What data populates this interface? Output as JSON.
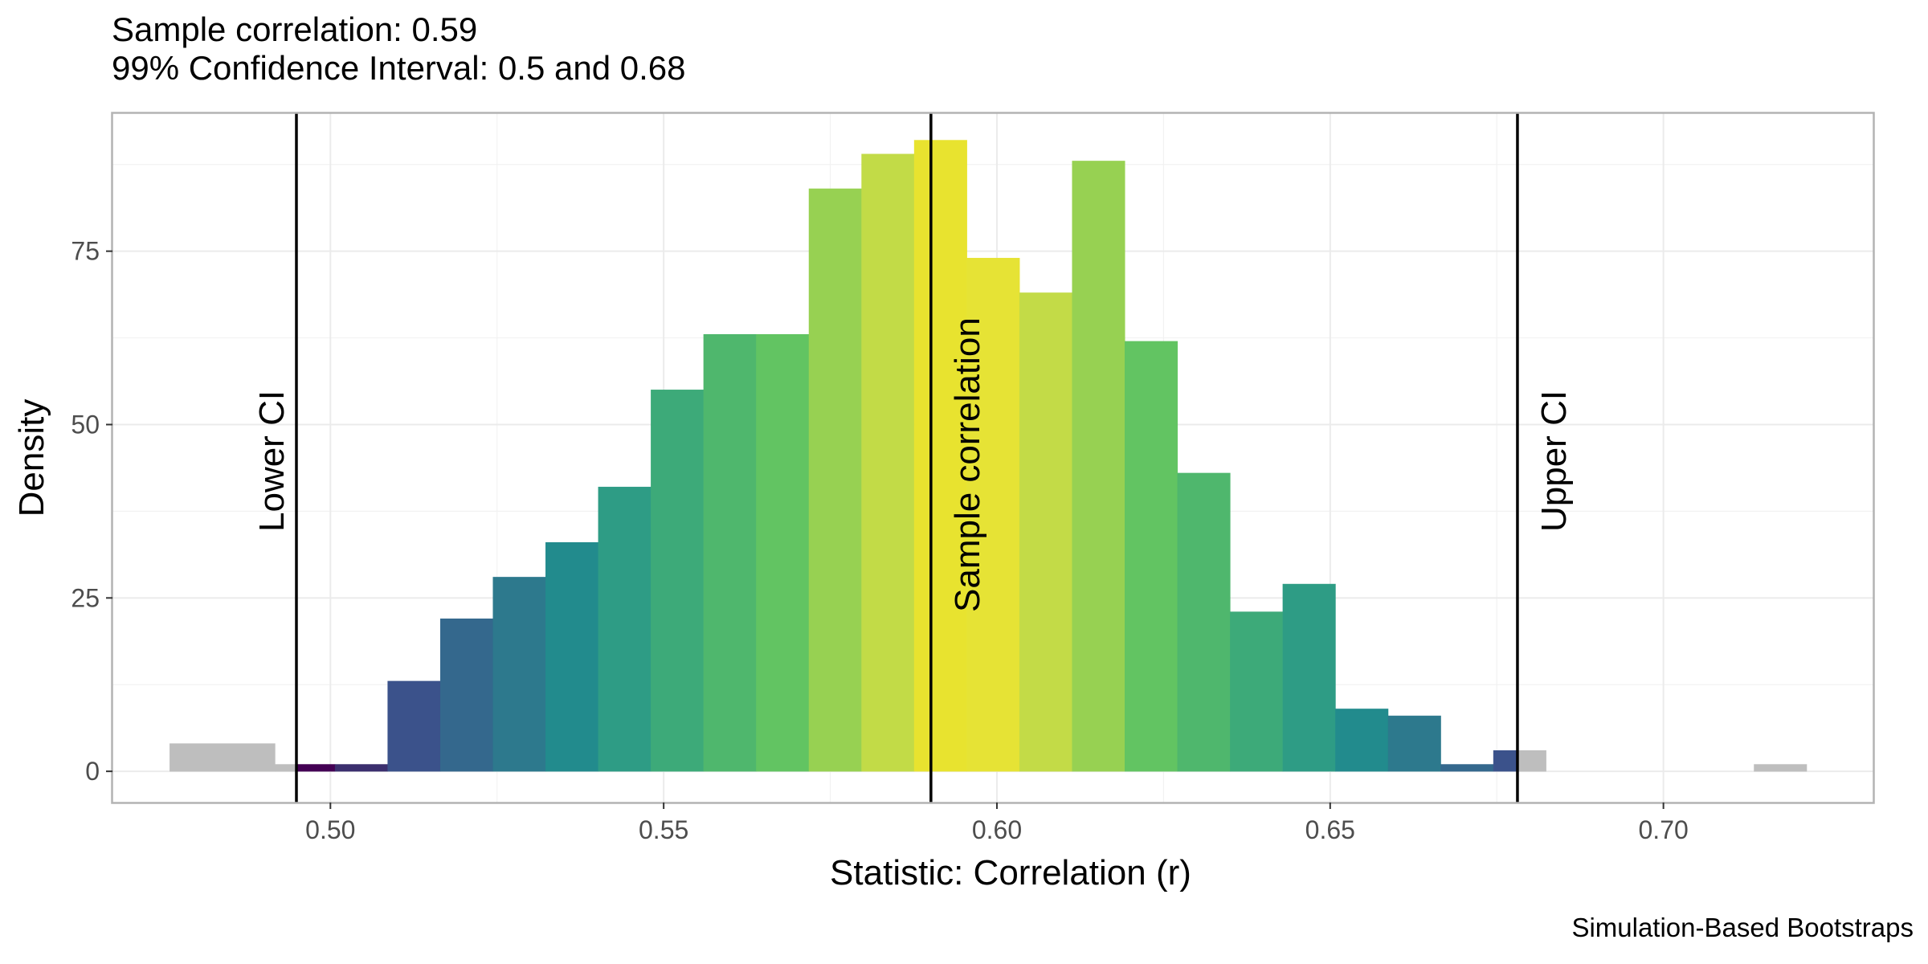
{
  "subtitle_line1": "Sample correlation: 0.59",
  "subtitle_line2": "99% Confidence Interval: 0.5 and 0.68",
  "caption": "Simulation-Based Bootstraps",
  "chart_data": {
    "type": "bar",
    "subtype": "histogram",
    "xlabel": "Statistic: Correlation (r)",
    "ylabel": "Density",
    "xlim": [
      0.4673,
      0.7315
    ],
    "ylim": [
      -4.5,
      95
    ],
    "x_ticks": [
      "0.50",
      "0.55",
      "0.60",
      "0.65",
      "0.70"
    ],
    "x_tick_values": [
      0.5,
      0.55,
      0.6,
      0.65,
      0.7
    ],
    "y_ticks": [
      "0",
      "25",
      "50",
      "75"
    ],
    "y_tick_values": [
      0,
      25,
      50,
      75
    ],
    "grid": true,
    "outside_ci_color": "#BEBEBE",
    "bins": [
      {
        "x0": 0.4759,
        "x1": 0.4917,
        "y": 4,
        "color": "#BEBEBE"
      },
      {
        "x0": 0.4917,
        "x1": 0.4949,
        "y": 1,
        "color": "#BEBEBE"
      },
      {
        "x0": 0.4949,
        "x1": 0.5007,
        "y": 1,
        "color": "#440154"
      },
      {
        "x0": 0.5007,
        "x1": 0.5086,
        "y": 1,
        "color": "#3B2F6E"
      },
      {
        "x0": 0.5086,
        "x1": 0.5165,
        "y": 13,
        "color": "#3B528B"
      },
      {
        "x0": 0.5165,
        "x1": 0.5244,
        "y": 22,
        "color": "#34688D"
      },
      {
        "x0": 0.5244,
        "x1": 0.5323,
        "y": 28,
        "color": "#2D798D"
      },
      {
        "x0": 0.5323,
        "x1": 0.5402,
        "y": 33,
        "color": "#228B8D"
      },
      {
        "x0": 0.5402,
        "x1": 0.5481,
        "y": 41,
        "color": "#2E9C85"
      },
      {
        "x0": 0.5481,
        "x1": 0.556,
        "y": 55,
        "color": "#3DAA79"
      },
      {
        "x0": 0.556,
        "x1": 0.5639,
        "y": 63,
        "color": "#4FB76D"
      },
      {
        "x0": 0.5639,
        "x1": 0.5718,
        "y": 63,
        "color": "#62C462"
      },
      {
        "x0": 0.5718,
        "x1": 0.5797,
        "y": 84,
        "color": "#97D152"
      },
      {
        "x0": 0.5797,
        "x1": 0.5876,
        "y": 89,
        "color": "#C2DB47"
      },
      {
        "x0": 0.5876,
        "x1": 0.5955,
        "y": 91,
        "color": "#E8E32F"
      },
      {
        "x0": 0.5955,
        "x1": 0.6034,
        "y": 74,
        "color": "#E6E335"
      },
      {
        "x0": 0.6034,
        "x1": 0.6113,
        "y": 69,
        "color": "#C3DB47"
      },
      {
        "x0": 0.6113,
        "x1": 0.6192,
        "y": 88,
        "color": "#97D152"
      },
      {
        "x0": 0.6192,
        "x1": 0.6271,
        "y": 62,
        "color": "#62C462"
      },
      {
        "x0": 0.6271,
        "x1": 0.635,
        "y": 43,
        "color": "#4FB76D"
      },
      {
        "x0": 0.635,
        "x1": 0.6429,
        "y": 23,
        "color": "#3DAA79"
      },
      {
        "x0": 0.6429,
        "x1": 0.6508,
        "y": 27,
        "color": "#2E9C85"
      },
      {
        "x0": 0.6508,
        "x1": 0.6587,
        "y": 9,
        "color": "#228B8D"
      },
      {
        "x0": 0.6587,
        "x1": 0.6666,
        "y": 8,
        "color": "#2D798D"
      },
      {
        "x0": 0.6666,
        "x1": 0.6745,
        "y": 1,
        "color": "#34688D"
      },
      {
        "x0": 0.6745,
        "x1": 0.6781,
        "y": 3,
        "color": "#3B528B"
      },
      {
        "x0": 0.6781,
        "x1": 0.6824,
        "y": 3,
        "color": "#BEBEBE"
      },
      {
        "x0": 0.7136,
        "x1": 0.7215,
        "y": 1,
        "color": "#BEBEBE"
      }
    ],
    "vlines": [
      {
        "x": 0.4949,
        "label": "Lower CI"
      },
      {
        "x": 0.5901,
        "label": "Sample correlation"
      },
      {
        "x": 0.6781,
        "label": "Upper CI"
      }
    ]
  }
}
